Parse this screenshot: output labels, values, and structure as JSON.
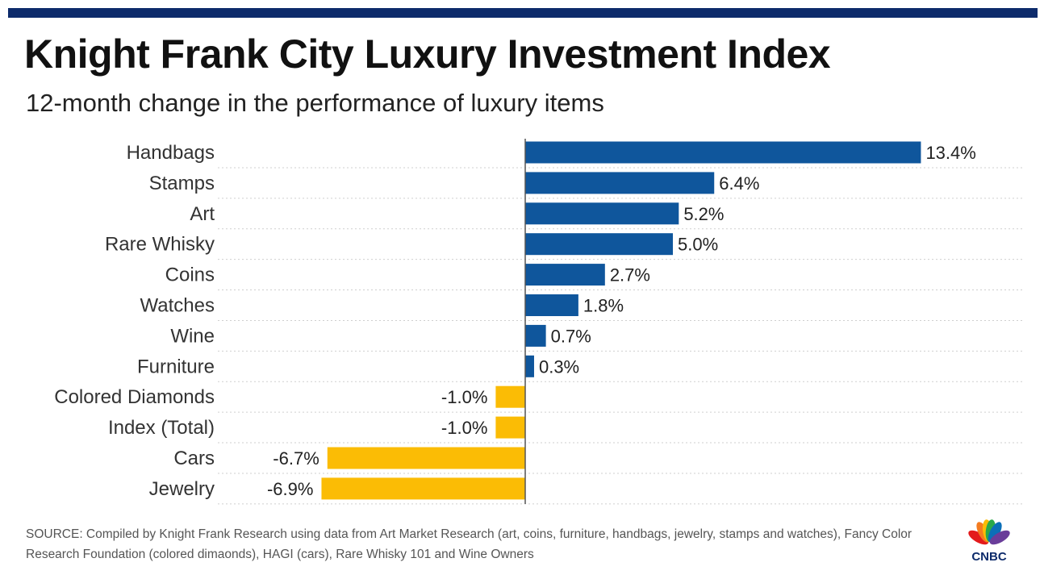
{
  "header": {
    "title": "Knight Frank City Luxury Investment Index",
    "subtitle": "12-month change in the performance of luxury items"
  },
  "footer": {
    "source": "SOURCE: Compiled by Knight Frank Research using data from Art Market Research (art, coins, furniture, handbags, jewelry, stamps and watches), Fancy Color Research Foundation (colored dimaonds), HAGI (cars), Rare Whisky 101 and Wine Owners",
    "logo_text": "CNBC"
  },
  "colors": {
    "positive": "#0f569c",
    "negative": "#fbbc05",
    "top_bar": "#0d2b6b",
    "logo_colors": [
      "#e31a1c",
      "#f47b20",
      "#fbbc05",
      "#2aa84a",
      "#0b6fb8",
      "#6a3d9a"
    ]
  },
  "chart_data": {
    "type": "bar",
    "orientation": "horizontal",
    "title": "Knight Frank City Luxury Investment Index",
    "subtitle": "12-month change in the performance of luxury items",
    "categories": [
      "Handbags",
      "Stamps",
      "Art",
      "Rare Whisky",
      "Coins",
      "Watches",
      "Wine",
      "Furniture",
      "Colored Diamonds",
      "Index (Total)",
      "Cars",
      "Jewelry"
    ],
    "values": [
      13.4,
      6.4,
      5.2,
      5.0,
      2.7,
      1.8,
      0.7,
      0.3,
      -1.0,
      -1.0,
      -6.7,
      -6.9
    ],
    "value_labels": [
      "13.4%",
      "6.4%",
      "5.2%",
      "5.0%",
      "2.7%",
      "1.8%",
      "0.7%",
      "0.3%",
      "-1.0%",
      "-1.0%",
      "-6.7%",
      "-6.9%"
    ],
    "xlim": [
      -7,
      13.4
    ],
    "grid": "dotted horizontal separators",
    "legend": "none"
  }
}
